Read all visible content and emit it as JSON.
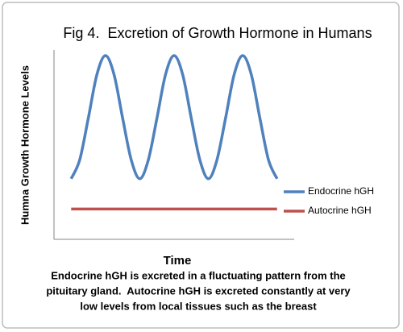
{
  "chart_data": {
    "type": "line",
    "title": "Fig 4.  Excretion of Growth Hormone in Humans",
    "x_label": "Time",
    "y_label": "Humna Growth Hormone Levels",
    "x": [
      0,
      0.25,
      0.5,
      0.75,
      1,
      1.25,
      1.5,
      1.75,
      2,
      2.25,
      2.5,
      2.75,
      3,
      3.25,
      3.5,
      3.75,
      4,
      4.25,
      4.5,
      4.75,
      5,
      5.25,
      5.5,
      5.75,
      6
    ],
    "series": [
      {
        "name": "Endocrine hGH",
        "color": "#4f81bd",
        "values": [
          32,
          42,
          64,
          87,
          97,
          87,
          64,
          42,
          32,
          42,
          64,
          87,
          97,
          87,
          64,
          42,
          32,
          42,
          64,
          87,
          97,
          87,
          64,
          42,
          32
        ]
      },
      {
        "name": "Autocrine hGH",
        "color": "#c0504d",
        "values": [
          16,
          16,
          16,
          16,
          16,
          16,
          16,
          16,
          16,
          16,
          16,
          16,
          16,
          16,
          16,
          16,
          16,
          16,
          16,
          16,
          16,
          16,
          16,
          16,
          16
        ]
      }
    ],
    "xlim": [
      -0.5,
      6.5
    ],
    "ylim": [
      0,
      100
    ],
    "legend": "right",
    "caption": [
      "Endocrine hGH is excreted in a fluctuating pattern from the",
      "pituitary gland.  Autocrine hGH is excreted constantly at very",
      "low levels from local tissues such as the breast"
    ]
  }
}
